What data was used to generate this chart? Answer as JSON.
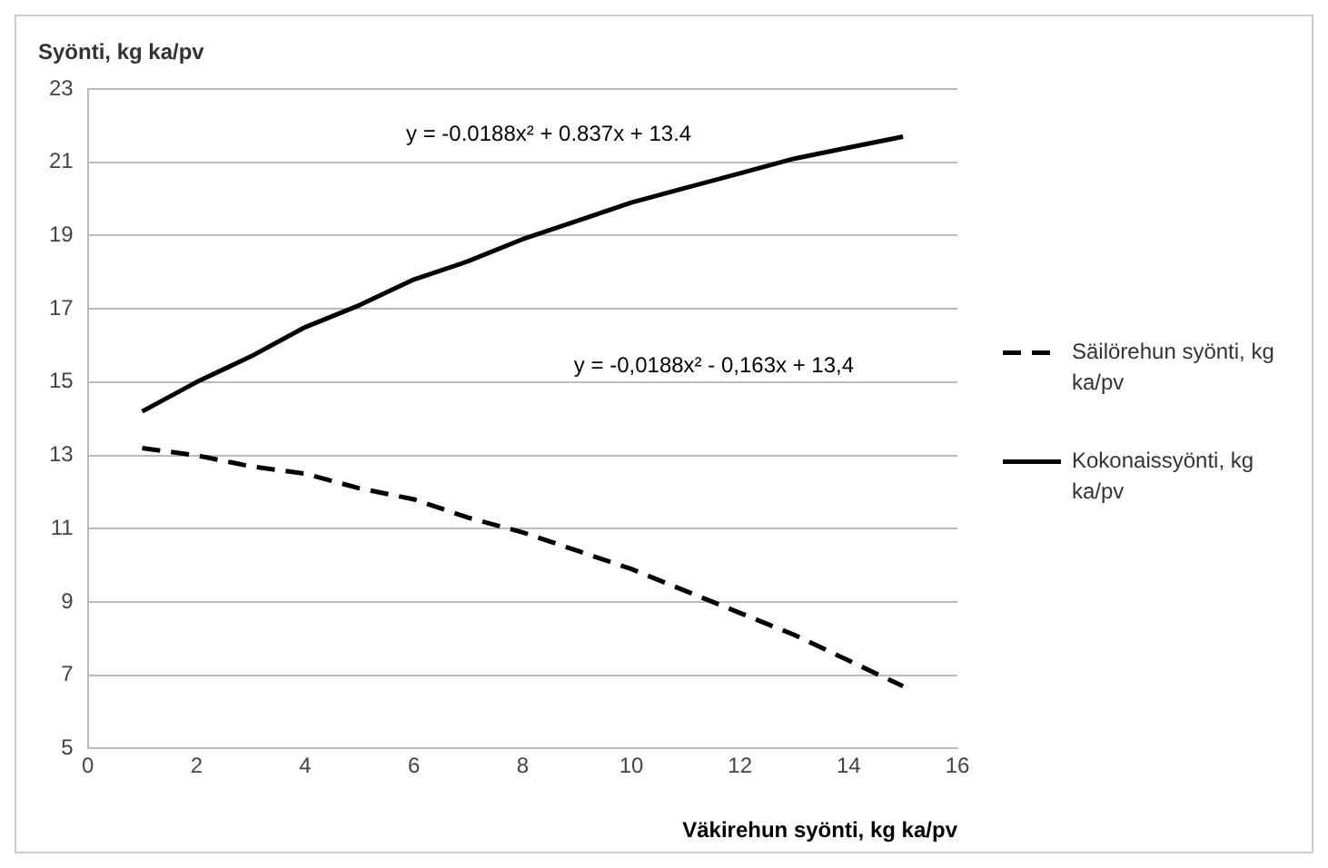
{
  "chart_data": {
    "type": "line",
    "ylabel": "Syönti, kg ka/pv",
    "xlabel": "Väkirehun syönti, kg ka/pv",
    "x": [
      1,
      2,
      3,
      4,
      5,
      6,
      7,
      8,
      9,
      10,
      11,
      12,
      13,
      14,
      15
    ],
    "series": [
      {
        "name": "Säilörehun syönti, kg ka/pv",
        "color": "#000000",
        "line_style": "dashed",
        "values": [
          13.2,
          13.0,
          12.7,
          12.5,
          12.1,
          11.8,
          11.3,
          10.9,
          10.4,
          9.9,
          9.3,
          8.7,
          8.1,
          7.4,
          6.7
        ]
      },
      {
        "name": "Kokonaissyönti, kg ka/pv",
        "color": "#000000",
        "line_style": "solid",
        "values": [
          14.2,
          15.0,
          15.7,
          16.5,
          17.1,
          17.8,
          18.3,
          18.9,
          19.4,
          19.9,
          20.3,
          20.7,
          21.1,
          21.4,
          21.7
        ]
      }
    ],
    "xlim": [
      0,
      16
    ],
    "xticks": [
      0,
      2,
      4,
      6,
      8,
      10,
      12,
      14,
      16
    ],
    "ylim": [
      5,
      23
    ],
    "yticks": [
      5,
      7,
      9,
      11,
      13,
      15,
      17,
      19,
      21,
      23
    ],
    "grid": "y",
    "legend": "right",
    "marker": "none",
    "annotations": [
      "y = -0.0188x² + 0.837x + 13.4",
      "y = -0,0188x² - 0,163x + 13,4"
    ]
  }
}
